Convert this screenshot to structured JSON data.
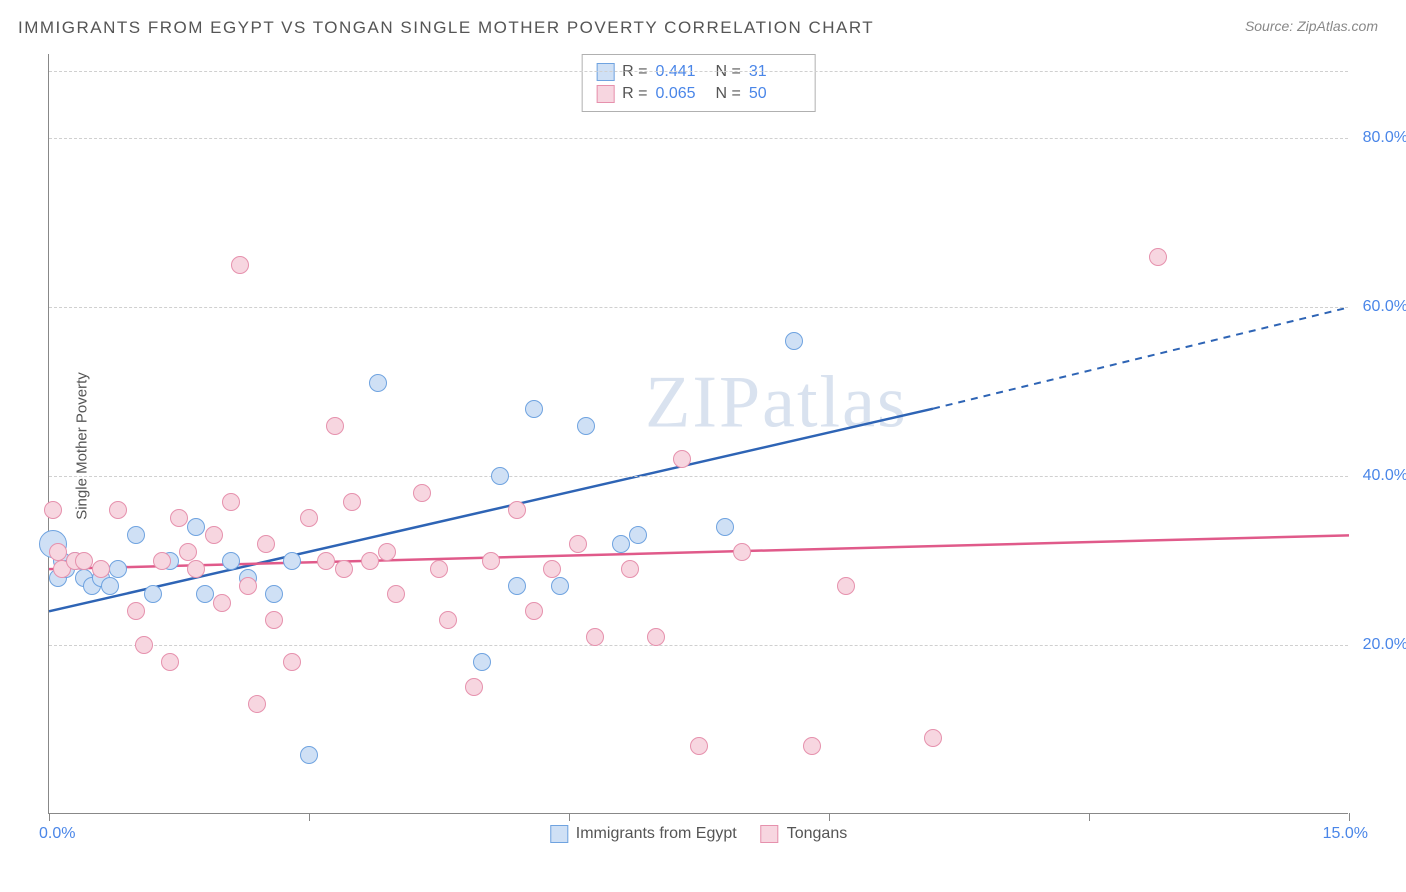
{
  "title": "IMMIGRANTS FROM EGYPT VS TONGAN SINGLE MOTHER POVERTY CORRELATION CHART",
  "source": "Source: ZipAtlas.com",
  "ylabel": "Single Mother Poverty",
  "watermark": "ZIPatlas",
  "chart": {
    "type": "scatter",
    "xlim": [
      0,
      15
    ],
    "ylim": [
      0,
      90
    ],
    "xticks": [
      0,
      3,
      6,
      9,
      12,
      15
    ],
    "xtick_labels": {
      "left": "0.0%",
      "right": "15.0%"
    },
    "yticks": [
      20,
      40,
      60,
      80
    ],
    "ytick_labels": [
      "20.0%",
      "40.0%",
      "60.0%",
      "80.0%"
    ],
    "background_color": "#ffffff",
    "grid_color": "#d0d0d0",
    "axis_color": "#888888",
    "value_color": "#4a86e8",
    "point_radius": 9,
    "series": [
      {
        "name": "Immigrants from Egypt",
        "legend_label": "Immigrants from Egypt",
        "fill": "#cfe0f5",
        "stroke": "#6fa3e0",
        "line_color": "#2e64b5",
        "R": "0.441",
        "N": "31",
        "trend": {
          "x1": 0,
          "y1": 24,
          "x2": 10.2,
          "y2": 48,
          "x3": 15,
          "y3": 60
        },
        "points": [
          {
            "x": 0.05,
            "y": 32,
            "r": 14
          },
          {
            "x": 0.1,
            "y": 28
          },
          {
            "x": 0.15,
            "y": 30
          },
          {
            "x": 0.2,
            "y": 29
          },
          {
            "x": 0.3,
            "y": 30
          },
          {
            "x": 0.4,
            "y": 28
          },
          {
            "x": 0.5,
            "y": 27
          },
          {
            "x": 0.6,
            "y": 28
          },
          {
            "x": 0.7,
            "y": 27
          },
          {
            "x": 0.8,
            "y": 29
          },
          {
            "x": 1.0,
            "y": 33
          },
          {
            "x": 1.2,
            "y": 26
          },
          {
            "x": 1.4,
            "y": 30
          },
          {
            "x": 1.7,
            "y": 34
          },
          {
            "x": 1.8,
            "y": 26
          },
          {
            "x": 2.1,
            "y": 30
          },
          {
            "x": 2.3,
            "y": 28
          },
          {
            "x": 2.6,
            "y": 26
          },
          {
            "x": 2.8,
            "y": 30
          },
          {
            "x": 3.0,
            "y": 7
          },
          {
            "x": 3.8,
            "y": 51
          },
          {
            "x": 5.0,
            "y": 18
          },
          {
            "x": 5.2,
            "y": 40
          },
          {
            "x": 5.4,
            "y": 27
          },
          {
            "x": 5.6,
            "y": 48
          },
          {
            "x": 5.9,
            "y": 27
          },
          {
            "x": 6.2,
            "y": 46
          },
          {
            "x": 6.6,
            "y": 32
          },
          {
            "x": 6.8,
            "y": 33
          },
          {
            "x": 7.8,
            "y": 34
          },
          {
            "x": 8.6,
            "y": 56
          }
        ]
      },
      {
        "name": "Tongans",
        "legend_label": "Tongans",
        "fill": "#f7d6e0",
        "stroke": "#e691ad",
        "line_color": "#e05a8a",
        "R": "0.065",
        "N": "50",
        "trend": {
          "x1": 0,
          "y1": 29,
          "x2": 15,
          "y2": 33
        },
        "points": [
          {
            "x": 0.05,
            "y": 36
          },
          {
            "x": 0.1,
            "y": 31
          },
          {
            "x": 0.15,
            "y": 29
          },
          {
            "x": 0.3,
            "y": 30
          },
          {
            "x": 0.4,
            "y": 30
          },
          {
            "x": 0.6,
            "y": 29
          },
          {
            "x": 0.8,
            "y": 36
          },
          {
            "x": 1.1,
            "y": 20
          },
          {
            "x": 1.3,
            "y": 30
          },
          {
            "x": 1.4,
            "y": 18
          },
          {
            "x": 1.5,
            "y": 35
          },
          {
            "x": 1.7,
            "y": 29
          },
          {
            "x": 1.9,
            "y": 33
          },
          {
            "x": 2.1,
            "y": 37
          },
          {
            "x": 2.2,
            "y": 65
          },
          {
            "x": 2.3,
            "y": 27
          },
          {
            "x": 2.4,
            "y": 13
          },
          {
            "x": 2.6,
            "y": 23
          },
          {
            "x": 2.8,
            "y": 18
          },
          {
            "x": 3.0,
            "y": 35
          },
          {
            "x": 3.2,
            "y": 30
          },
          {
            "x": 3.3,
            "y": 46
          },
          {
            "x": 3.5,
            "y": 37
          },
          {
            "x": 3.7,
            "y": 30
          },
          {
            "x": 4.0,
            "y": 26
          },
          {
            "x": 4.3,
            "y": 38
          },
          {
            "x": 4.6,
            "y": 23
          },
          {
            "x": 4.9,
            "y": 15
          },
          {
            "x": 5.1,
            "y": 30
          },
          {
            "x": 5.4,
            "y": 36
          },
          {
            "x": 5.8,
            "y": 29
          },
          {
            "x": 6.1,
            "y": 32
          },
          {
            "x": 6.3,
            "y": 21
          },
          {
            "x": 6.7,
            "y": 29
          },
          {
            "x": 7.0,
            "y": 21
          },
          {
            "x": 7.3,
            "y": 42
          },
          {
            "x": 7.5,
            "y": 8
          },
          {
            "x": 8.0,
            "y": 31
          },
          {
            "x": 8.8,
            "y": 8
          },
          {
            "x": 9.2,
            "y": 27
          },
          {
            "x": 10.2,
            "y": 9
          },
          {
            "x": 12.8,
            "y": 66
          },
          {
            "x": 1.0,
            "y": 24
          },
          {
            "x": 1.6,
            "y": 31
          },
          {
            "x": 2.0,
            "y": 25
          },
          {
            "x": 2.5,
            "y": 32
          },
          {
            "x": 3.4,
            "y": 29
          },
          {
            "x": 3.9,
            "y": 31
          },
          {
            "x": 4.5,
            "y": 29
          },
          {
            "x": 5.6,
            "y": 24
          }
        ]
      }
    ]
  }
}
